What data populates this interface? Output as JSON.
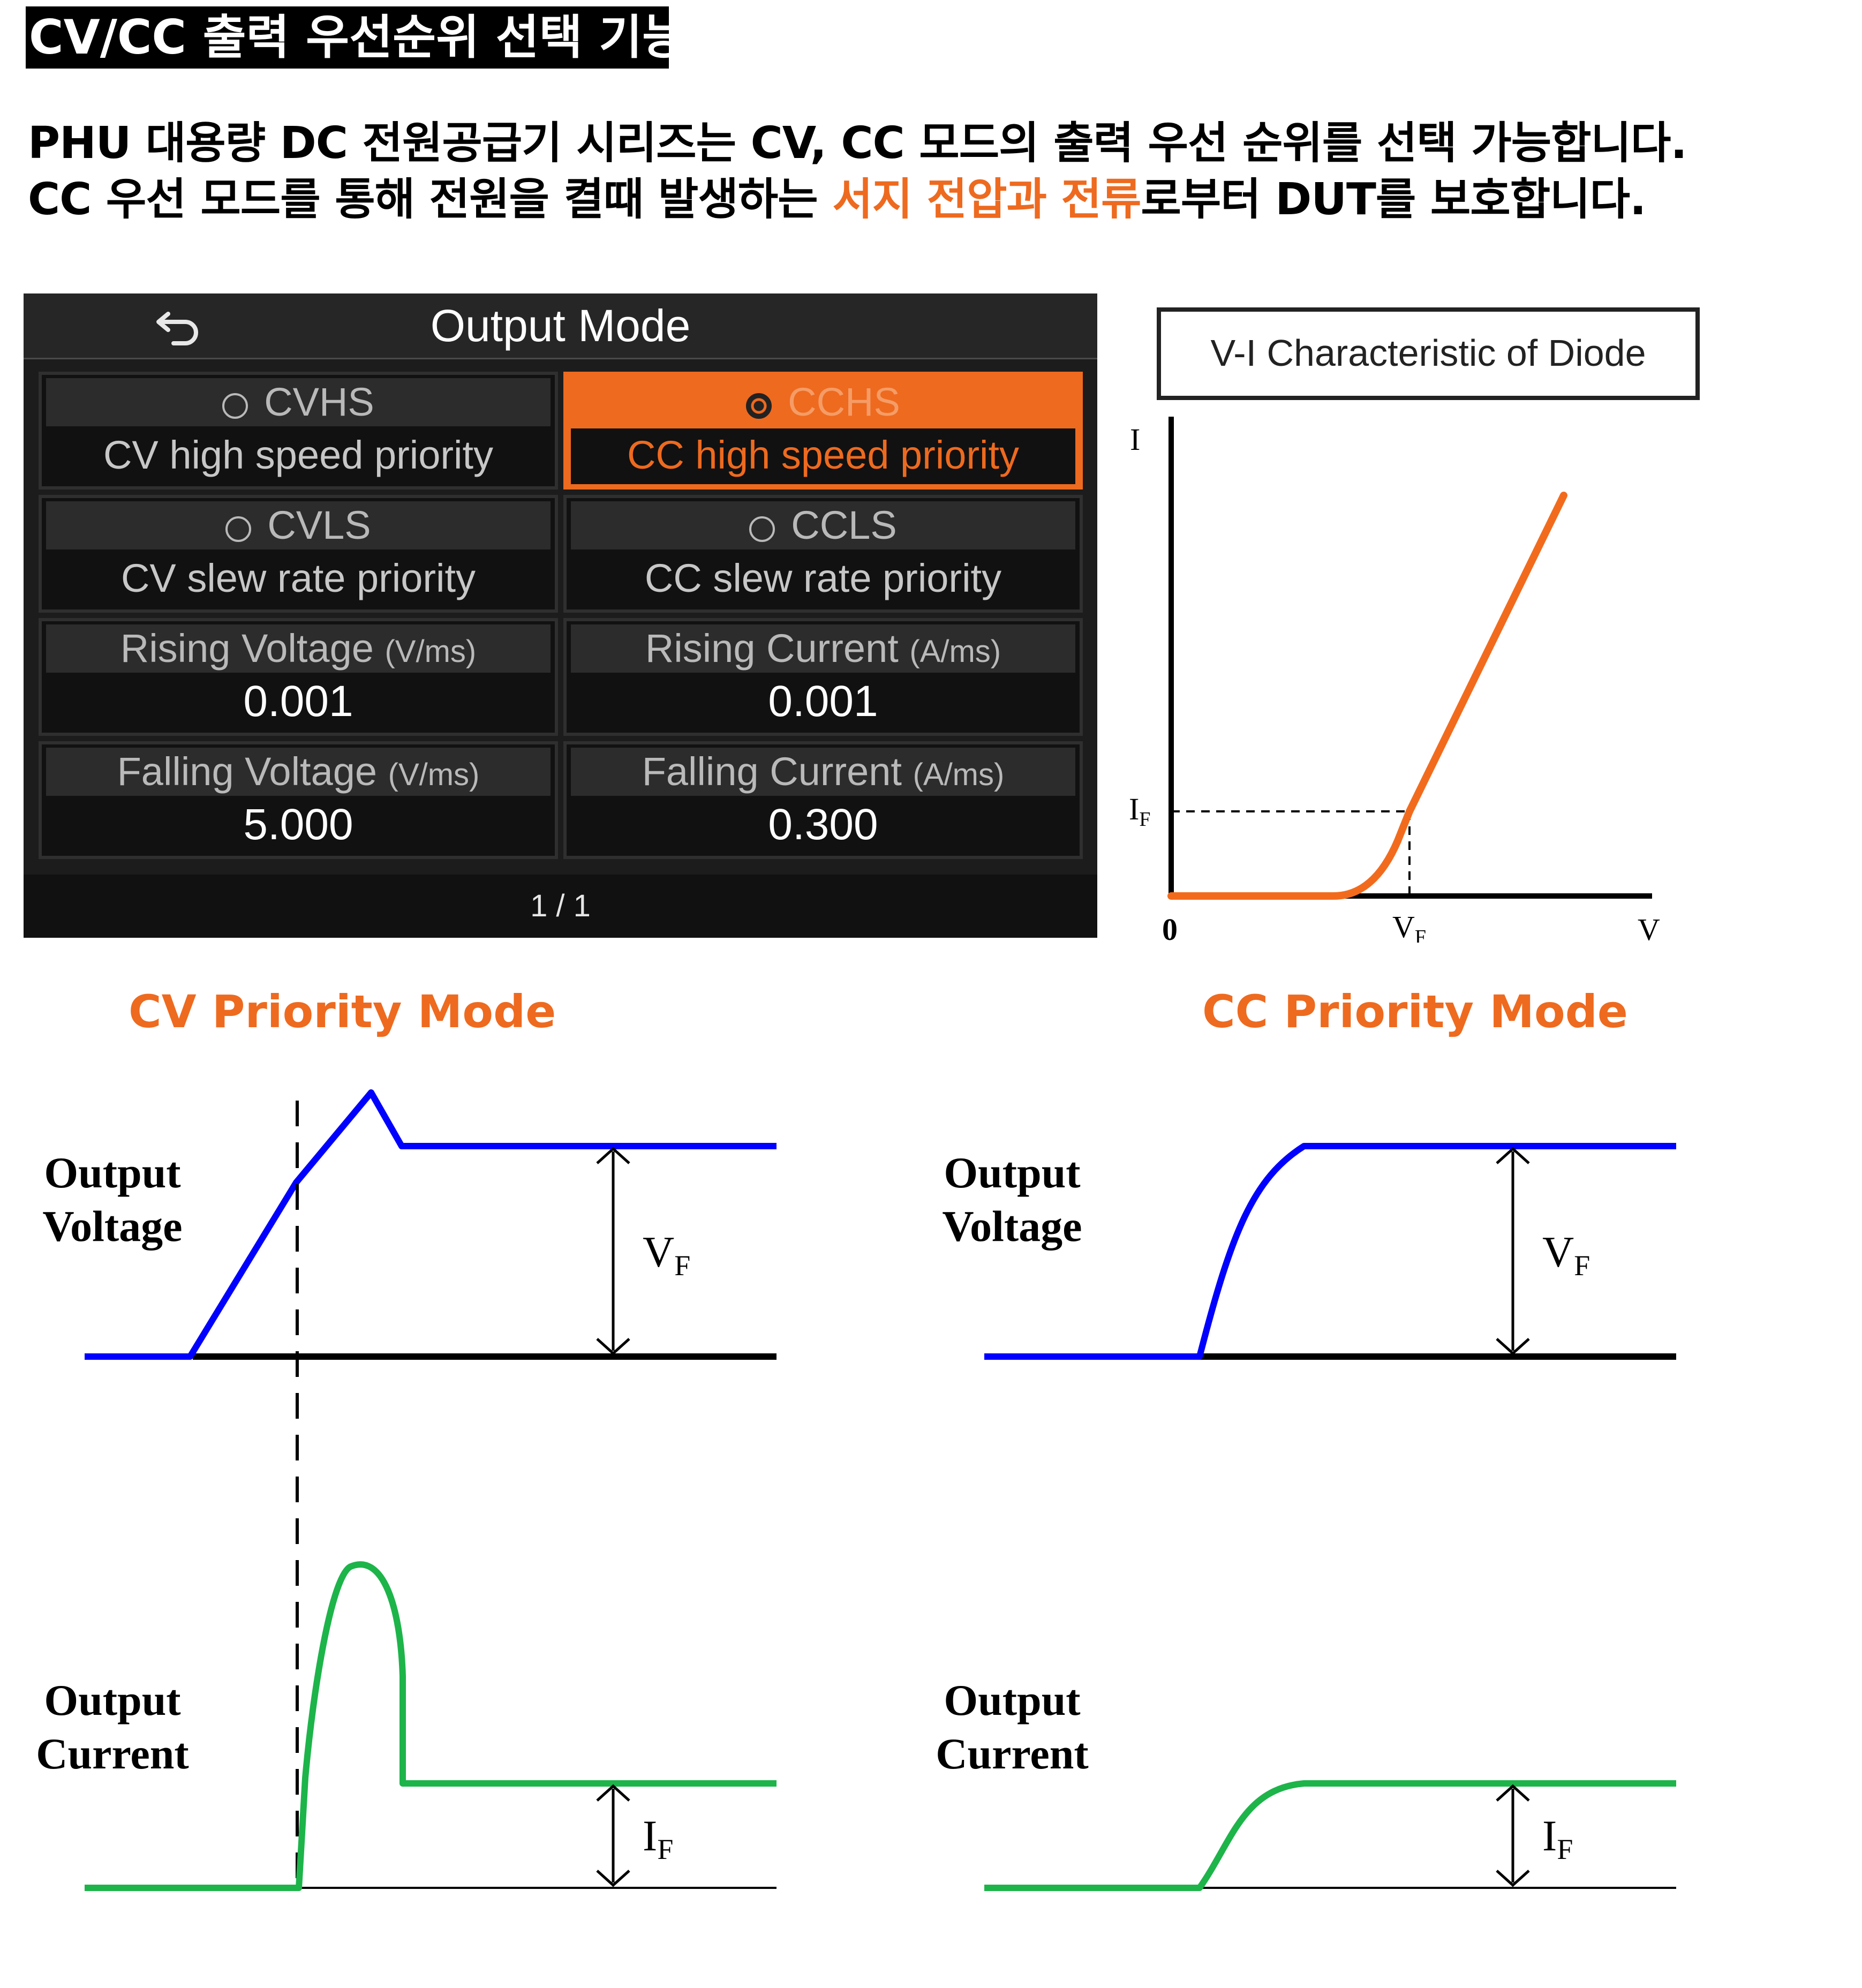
{
  "page_title": "CV/CC 출력 우선순위 선택 기능",
  "intro": {
    "line1": "PHU 대용량 DC 전원공급기 시리즈는 CV, CC 모드의 출력 우선 순위를 선택 가능합니다.",
    "line2_before": "CC 우선 모드를 통해 전원을 켤때 발생하는 ",
    "line2_highlight": "서지 전압과 전류",
    "line2_after": "로부터 DUT를 보호합니다."
  },
  "device": {
    "title": "Output Mode",
    "back_icon": "back-arrow-icon",
    "modes": [
      {
        "code": "CVHS",
        "desc": "CV high speed priority",
        "selected": false
      },
      {
        "code": "CCHS",
        "desc": "CC high speed priority",
        "selected": true
      },
      {
        "code": "CVLS",
        "desc": "CV slew rate priority",
        "selected": false
      },
      {
        "code": "CCLS",
        "desc": "CC slew rate priority",
        "selected": false
      }
    ],
    "rates": [
      {
        "label": "Rising Voltage",
        "unit": "(V/ms)",
        "value": "0.001"
      },
      {
        "label": "Rising Current",
        "unit": "(A/ms)",
        "value": "0.001"
      },
      {
        "label": "Falling Voltage",
        "unit": "(V/ms)",
        "value": "5.000"
      },
      {
        "label": "Falling Current",
        "unit": "(A/ms)",
        "value": "0.300"
      }
    ],
    "page": "1 / 1",
    "accent": "#ee6a1f"
  },
  "vi_chart": {
    "title": "V-I Characteristic of Diode",
    "y_axis": "I",
    "x_axis": "V",
    "origin": "0",
    "if_label": {
      "main": "I",
      "sub": "F"
    },
    "vf_label": {
      "main": "V",
      "sub": "F"
    },
    "curve_color": "#f26b1d"
  },
  "cv_mode": {
    "title": "CV Priority Mode",
    "voltage_label": [
      "Output",
      "Voltage"
    ],
    "current_label": [
      "Output",
      "Current"
    ],
    "vf": {
      "main": "V",
      "sub": "F"
    },
    "if": {
      "main": "I",
      "sub": "F"
    }
  },
  "cc_mode": {
    "title": "CC Priority Mode",
    "voltage_label": [
      "Output",
      "Voltage"
    ],
    "current_label": [
      "Output",
      "Current"
    ],
    "vf": {
      "main": "V",
      "sub": "F"
    },
    "if": {
      "main": "I",
      "sub": "F"
    }
  },
  "colors": {
    "voltage": "#0000ff",
    "current": "#1db44a",
    "highlight": "#ee6a1f"
  }
}
